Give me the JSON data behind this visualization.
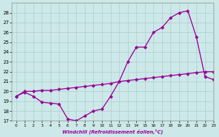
{
  "xlabel": "Windchill (Refroidissement éolien,°C)",
  "x_line1": [
    0,
    1,
    2,
    3,
    4,
    5,
    6,
    7,
    8,
    9,
    10,
    11,
    12,
    13,
    14,
    15,
    16,
    17,
    18,
    19,
    20,
    21,
    22,
    23
  ],
  "y_line1": [
    19.5,
    19.9,
    19.5,
    18.9,
    18.8,
    18.7,
    17.2,
    17.0,
    17.5,
    18.0,
    18.2,
    19.5,
    21.0,
    23.0,
    24.5,
    24.5,
    26.0,
    26.5,
    27.5,
    28.0,
    28.2,
    25.5,
    21.5,
    21.2
  ],
  "x_line2": [
    0,
    1,
    2,
    3,
    4,
    5,
    6,
    7,
    8,
    9,
    10,
    11,
    12,
    13,
    14,
    15,
    16,
    17,
    18,
    19,
    20,
    21,
    22,
    23
  ],
  "y_line2": [
    19.5,
    20.0,
    20.0,
    20.1,
    20.1,
    20.2,
    20.3,
    20.4,
    20.5,
    20.6,
    20.7,
    20.8,
    21.0,
    21.1,
    21.2,
    21.3,
    21.4,
    21.5,
    21.6,
    21.7,
    21.8,
    21.9,
    22.0,
    22.0
  ],
  "line_color": "#990099",
  "bg_color": "#cce8e8",
  "grid_color": "#aacccc",
  "ylim": [
    17,
    29
  ],
  "xlim": [
    -0.5,
    23
  ],
  "yticks": [
    17,
    18,
    19,
    20,
    21,
    22,
    23,
    24,
    25,
    26,
    27,
    28
  ],
  "xticks": [
    0,
    1,
    2,
    3,
    4,
    5,
    6,
    7,
    8,
    9,
    10,
    11,
    12,
    13,
    14,
    15,
    16,
    17,
    18,
    19,
    20,
    21,
    22,
    23
  ],
  "markersize": 2.5,
  "linewidth": 1.0
}
